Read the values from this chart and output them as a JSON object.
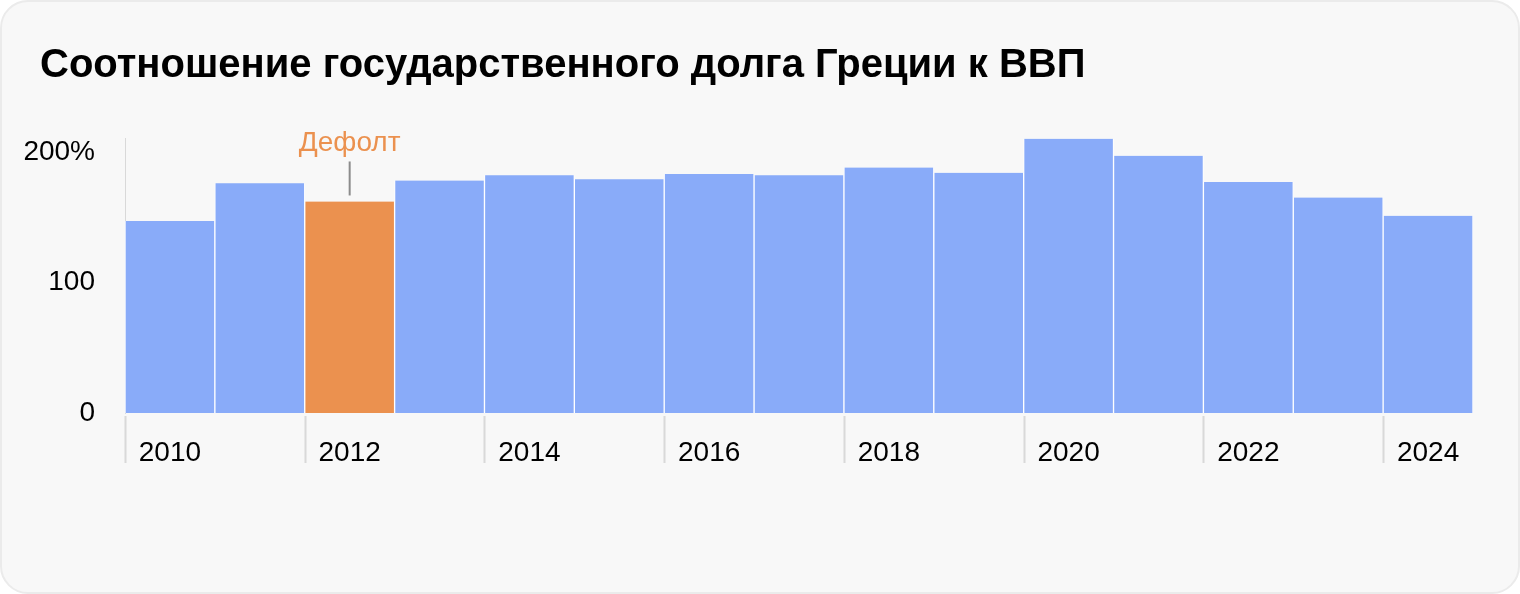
{
  "chart_data": {
    "type": "bar",
    "title": "Соотношение государственного долга Греции к ВВП",
    "categories": [
      "2010",
      null,
      "2012",
      null,
      "2014",
      null,
      "2016",
      null,
      "2018",
      null,
      "2020",
      null,
      "2022",
      null,
      "2024"
    ],
    "values": [
      147,
      176,
      162,
      178,
      182,
      179,
      183,
      182,
      188,
      184,
      210,
      197,
      177,
      165,
      151
    ],
    "colors": [
      "#89abf9",
      "#89abf9",
      "#eb914f",
      "#89abf9",
      "#89abf9",
      "#89abf9",
      "#89abf9",
      "#89abf9",
      "#89abf9",
      "#89abf9",
      "#89abf9",
      "#89abf9",
      "#89abf9",
      "#89abf9",
      "#89abf9"
    ],
    "ylim": [
      0,
      210
    ],
    "yticks": [
      0,
      100,
      {
        "value": 200,
        "label": "200%"
      }
    ],
    "annotations": [
      {
        "text": "Дефолт",
        "x": "2012",
        "y": 162
      }
    ]
  }
}
